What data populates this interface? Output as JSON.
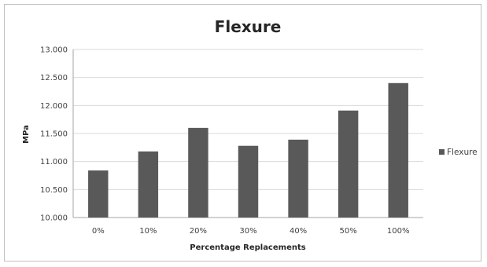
{
  "chart_data": {
    "type": "bar",
    "title": "Flexure",
    "xlabel": "Percentage Replacements",
    "ylabel": "MPa",
    "categories": [
      "0%",
      "10%",
      "20%",
      "30%",
      "40%",
      "50%",
      "100%"
    ],
    "series": [
      {
        "name": "Flexure",
        "values": [
          10.84,
          11.18,
          11.6,
          11.28,
          11.39,
          11.91,
          12.4
        ]
      }
    ],
    "ylim": [
      10.0,
      13.0
    ],
    "yticks": [
      "10.000",
      "10.500",
      "11.000",
      "11.500",
      "12.000",
      "12.500",
      "13.000"
    ],
    "grid": true,
    "legend_position": "right",
    "colors": {
      "bar": "#595959",
      "grid": "#d9d9d9",
      "axis": "#a6a6a6"
    }
  }
}
